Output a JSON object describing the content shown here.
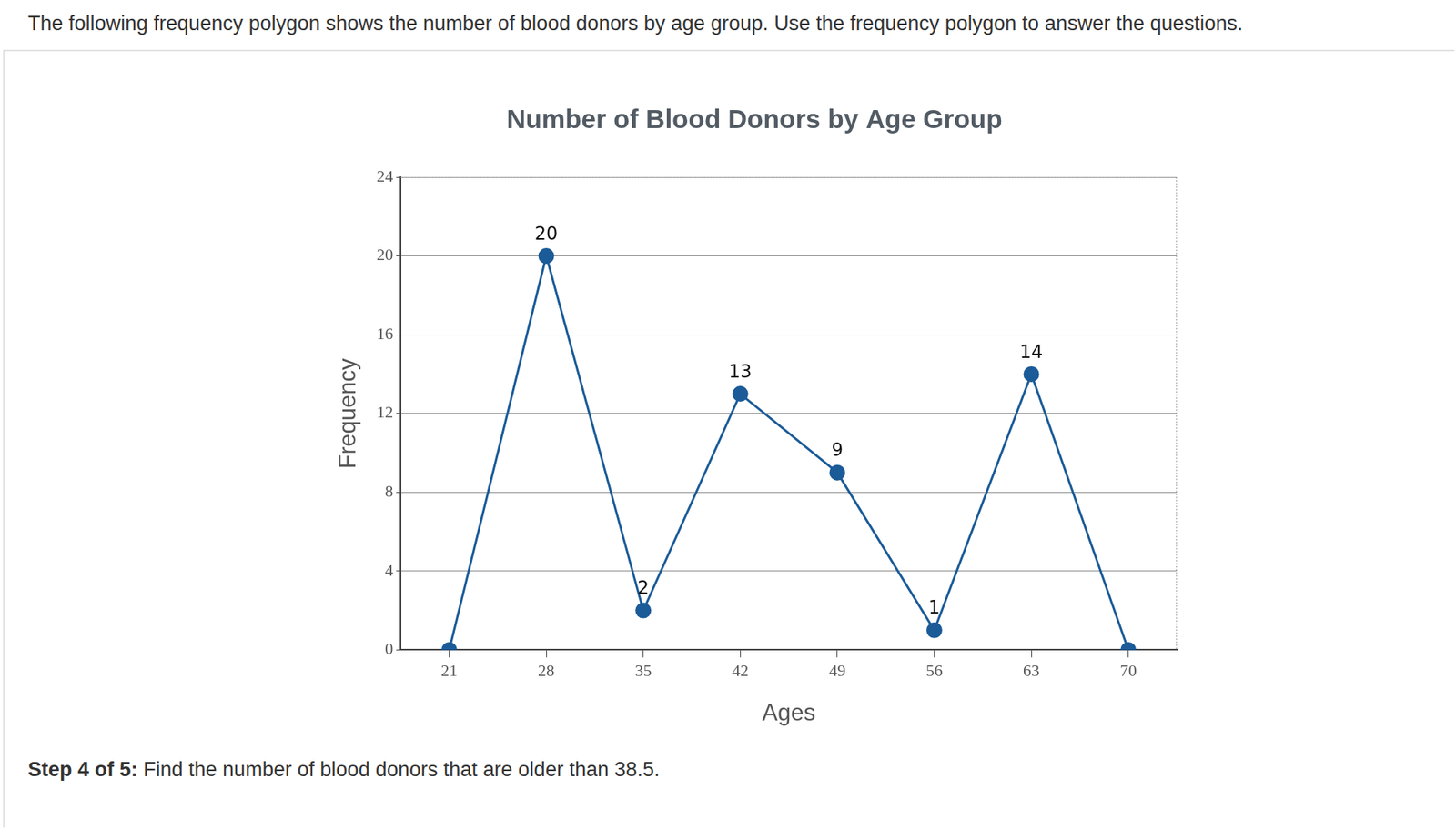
{
  "intro": "The following frequency polygon shows the number of blood donors by age group. Use the frequency polygon to answer the questions.",
  "question_label": "Step 4 of 5:",
  "question": "Find the number of blood donors that are older than 38.5.",
  "chart_data": {
    "type": "line",
    "title": "Number of Blood Donors by Age Group",
    "x_label": "Ages",
    "y_label": "Frequency",
    "x": [
      21,
      28,
      35,
      42,
      49,
      56,
      63,
      70
    ],
    "values": [
      0,
      20,
      2,
      13,
      9,
      1,
      14,
      0
    ],
    "value_labels": [
      null,
      "20",
      "2",
      "13",
      "9",
      "1",
      "14",
      null
    ],
    "data_labels": true,
    "color": "#1b5b98",
    "marker": "circle",
    "xlim": [
      17.5,
      73.5
    ],
    "xticks": [
      21,
      28,
      35,
      42,
      49,
      56,
      63,
      70
    ],
    "ylim": [
      0,
      24
    ],
    "yticks": [
      0,
      4,
      8,
      12,
      16,
      20,
      24
    ],
    "grid": "y"
  }
}
